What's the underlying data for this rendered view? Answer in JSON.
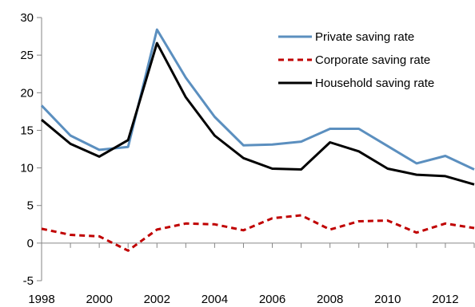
{
  "chart_data": {
    "type": "line",
    "title": "",
    "xlabel": "",
    "ylabel": "",
    "x": [
      1998,
      1999,
      2000,
      2001,
      2002,
      2003,
      2004,
      2005,
      2006,
      2007,
      2008,
      2009,
      2010,
      2011,
      2012,
      2013
    ],
    "xlim": [
      1998,
      2013
    ],
    "ylim": [
      -5,
      30
    ],
    "x_ticks": [
      1998,
      1999,
      2000,
      2001,
      2002,
      2003,
      2004,
      2005,
      2006,
      2007,
      2008,
      2009,
      2010,
      2011,
      2012,
      2013
    ],
    "x_tick_labels": [
      "1998",
      "2000",
      "2002",
      "2004",
      "2006",
      "2008",
      "2010",
      "2012"
    ],
    "x_tick_label_values": [
      1998,
      2000,
      2002,
      2004,
      2006,
      2008,
      2010,
      2012
    ],
    "y_ticks": [
      -5,
      0,
      5,
      10,
      15,
      20,
      25,
      30
    ],
    "y_tick_labels": [
      "-5",
      "0",
      "5",
      "10",
      "15",
      "20",
      "25",
      "30"
    ],
    "grid": false,
    "legend_position": "top-right",
    "series": [
      {
        "name": "Private saving rate",
        "color": "#5b8fbf",
        "style": "solid",
        "values": [
          18.3,
          14.3,
          12.4,
          12.8,
          28.4,
          22.0,
          16.8,
          13.0,
          13.1,
          13.5,
          15.2,
          15.2,
          12.9,
          10.6,
          11.6,
          9.8
        ]
      },
      {
        "name": "Corporate saving rate",
        "color": "#c00000",
        "style": "dashed",
        "values": [
          1.9,
          1.1,
          0.9,
          -1.0,
          1.8,
          2.6,
          2.5,
          1.7,
          3.3,
          3.7,
          1.8,
          2.9,
          3.0,
          1.4,
          2.6,
          2.0
        ]
      },
      {
        "name": "Household saving rate",
        "color": "#000000",
        "style": "solid",
        "values": [
          16.4,
          13.2,
          11.5,
          13.7,
          26.6,
          19.4,
          14.3,
          11.3,
          9.9,
          9.8,
          13.4,
          12.2,
          9.9,
          9.1,
          8.9,
          7.8
        ]
      }
    ]
  }
}
